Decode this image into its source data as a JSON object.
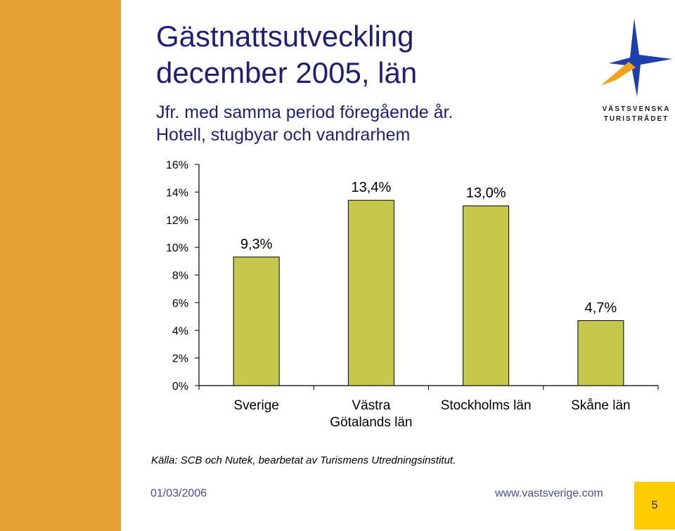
{
  "slide": {
    "title_line1": "Gästnattsutveckling",
    "title_line2": "december 2005, län",
    "subtitle_line1": "Jfr. med samma period föregående år.",
    "subtitle_line2": "Hotell, stugbyar och vandrarhem",
    "source": "Källa: SCB och Nutek, bearbetat av Turismens Utredningsinstitut.",
    "date": "01/03/2006",
    "url": "www.vastsverige.com",
    "page_number": "5",
    "logo_line1": "VÄSTSVENSKA",
    "logo_line2": "TURISTRÅDET",
    "logo_icon": "star-logo-icon"
  },
  "colors": {
    "sidebar": "#E3A033",
    "bar": "#C6C84C",
    "title": "#1F1F7A",
    "footer": "#4A4AA8",
    "page_box": "#FFCC00",
    "logo_blue": "#1E3FAF",
    "logo_orange": "#F0A21E"
  },
  "chart_data": {
    "type": "bar",
    "categories": [
      "Sverige",
      "Västra Götalands län",
      "Stockholms län",
      "Skåne län"
    ],
    "category_lines": [
      [
        "Sverige"
      ],
      [
        "Västra",
        "Götalands län"
      ],
      [
        "Stockholms län"
      ],
      [
        "Skåne län"
      ]
    ],
    "values": [
      9.3,
      13.4,
      13.0,
      4.7
    ],
    "data_labels": [
      "9,3%",
      "13,4%",
      "13,0%",
      "4,7%"
    ],
    "ylim": [
      0,
      16
    ],
    "yticks": [
      0,
      2,
      4,
      6,
      8,
      10,
      12,
      14,
      16
    ],
    "ytick_labels": [
      "0%",
      "2%",
      "4%",
      "6%",
      "8%",
      "10%",
      "12%",
      "14%",
      "16%"
    ],
    "grid": false,
    "legend": "none"
  }
}
